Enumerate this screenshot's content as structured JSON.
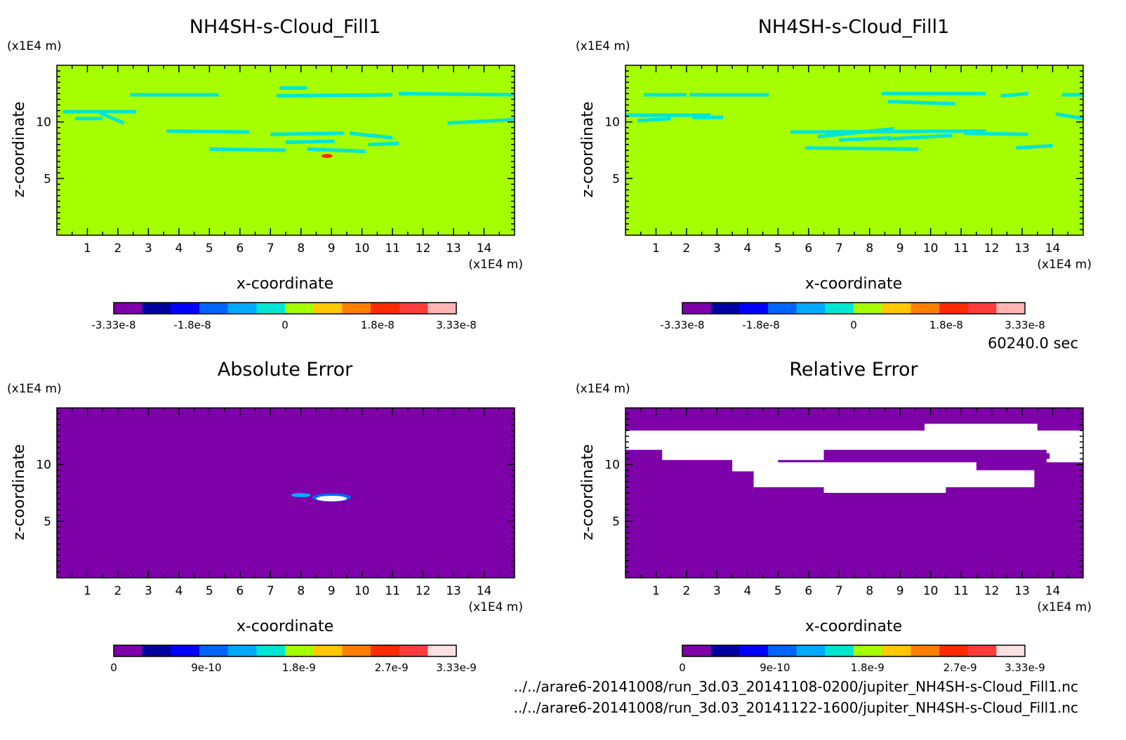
{
  "time_label": "60240.0 sec",
  "files": [
    "../../arare6-20141008/run_3d.03_20141108-0200/jupiter_NH4SH-s-Cloud_Fill1.nc",
    "../../arare6-20141008/run_3d.03_20141122-1600/jupiter_NH4SH-s-Cloud_Fill1.nc"
  ],
  "colors": {
    "background_field": "#a6ff00",
    "cloud_contour": "#00e6d2",
    "error_field": "#7d00a8",
    "relative_error_patch": "#ffffff"
  },
  "colorbar_colors": [
    "#7d00a8",
    "#00009e",
    "#0000ff",
    "#0064ff",
    "#00aaff",
    "#00e6d2",
    "#a6ff00",
    "#ffc800",
    "#ff8000",
    "#ff2a00",
    "#ff3c3c",
    "#ffb4b4"
  ],
  "colorbar_colors_error": [
    "#7d00a8",
    "#00009e",
    "#0000ff",
    "#0064ff",
    "#00aaff",
    "#00e6d2",
    "#a6ff00",
    "#ffc800",
    "#ff8000",
    "#ff2a00",
    "#ff3c3c",
    "#ffe0e0"
  ],
  "chart_data": [
    {
      "type": "heatmap",
      "title": "NH4SH-s-Cloud_Fill1",
      "xlabel": "x-coordinate",
      "ylabel": "z-coordinate",
      "x_unit": "(x1E4 m)",
      "y_unit": "(x1E4 m)",
      "xlim": [
        0,
        15
      ],
      "ylim": [
        0,
        15
      ],
      "xticks": [
        "1",
        "2",
        "3",
        "4",
        "5",
        "6",
        "7",
        "8",
        "9",
        "10",
        "11",
        "12",
        "13",
        "14"
      ],
      "yticks": [
        "5",
        "10"
      ],
      "colorbar_ticks": [
        "-3.33e-8",
        "-1.8e-8",
        "0",
        "1.8e-8",
        "3.33e-8"
      ],
      "colorbar_range": [
        -3.33e-08,
        3.33e-08
      ]
    },
    {
      "type": "heatmap",
      "title": "NH4SH-s-Cloud_Fill1",
      "xlabel": "x-coordinate",
      "ylabel": "z-coordinate",
      "x_unit": "(x1E4 m)",
      "y_unit": "(x1E4 m)",
      "xlim": [
        0,
        15
      ],
      "ylim": [
        0,
        15
      ],
      "xticks": [
        "1",
        "2",
        "3",
        "4",
        "5",
        "6",
        "7",
        "8",
        "9",
        "10",
        "11",
        "12",
        "13",
        "14"
      ],
      "yticks": [
        "5",
        "10"
      ],
      "colorbar_ticks": [
        "-3.33e-8",
        "-1.8e-8",
        "0",
        "1.8e-8",
        "3.33e-8"
      ],
      "colorbar_range": [
        -3.33e-08,
        3.33e-08
      ]
    },
    {
      "type": "heatmap",
      "title": "Absolute Error",
      "xlabel": "x-coordinate",
      "ylabel": "z-coordinate",
      "x_unit": "(x1E4 m)",
      "y_unit": "(x1E4 m)",
      "xlim": [
        0,
        15
      ],
      "ylim": [
        0,
        15
      ],
      "xticks": [
        "1",
        "2",
        "3",
        "4",
        "5",
        "6",
        "7",
        "8",
        "9",
        "10",
        "11",
        "12",
        "13",
        "14"
      ],
      "yticks": [
        "5",
        "10"
      ],
      "colorbar_ticks": [
        "0",
        "9e-10",
        "1.8e-9",
        "2.7e-9",
        "3.33e-9"
      ],
      "colorbar_range": [
        0,
        3.33e-09
      ]
    },
    {
      "type": "heatmap",
      "title": "Relative Error",
      "xlabel": "x-coordinate",
      "ylabel": "z-coordinate",
      "x_unit": "(x1E4 m)",
      "y_unit": "(x1E4 m)",
      "xlim": [
        0,
        15
      ],
      "ylim": [
        0,
        15
      ],
      "xticks": [
        "1",
        "2",
        "3",
        "4",
        "5",
        "6",
        "7",
        "8",
        "9",
        "10",
        "11",
        "12",
        "13",
        "14"
      ],
      "yticks": [
        "5",
        "10"
      ],
      "colorbar_ticks": [
        "0",
        "9e-10",
        "1.8e-9",
        "2.7e-9",
        "3.33e-9"
      ],
      "colorbar_range": [
        0,
        3.33e-09
      ]
    }
  ]
}
